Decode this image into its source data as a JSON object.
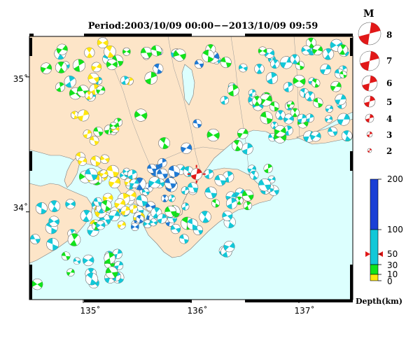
{
  "title": "Period:2003/10/09 00:00−−2013/10/09 09:59",
  "map": {
    "lon_range": [
      134.5,
      137.5
    ],
    "lat_range": [
      33.35,
      35.3
    ],
    "x_ticks": [
      {
        "lon": 135,
        "label": "135˚"
      },
      {
        "lon": 136,
        "label": "136˚"
      },
      {
        "lon": 137,
        "label": "137˚"
      }
    ],
    "y_ticks": [
      {
        "lat": 35,
        "label": "35˚"
      },
      {
        "lat": 34,
        "label": "34˚"
      }
    ],
    "colors": {
      "sea": "#dcfffe",
      "land": "#fde5c8",
      "shallow_0_10": "#ffe70f",
      "depth_10_30": "#12e31c",
      "depth_30_100": "#12c8d8",
      "deep_100_200": "#1e7ad5",
      "mainshock_red": "#e11818"
    },
    "mainshock": {
      "lon": 136.05,
      "lat": 34.28,
      "magnitude": 4.0,
      "depth_km": 50
    }
  },
  "magnitude_legend": {
    "title": "M",
    "items": [
      "8",
      "7",
      "6",
      "5",
      "4",
      "3",
      "2"
    ]
  },
  "depth_colorbar": {
    "title": "Depth(km)",
    "labels": [
      "200",
      "100",
      "50",
      "30",
      "10",
      "0"
    ],
    "marker_depth": "50"
  }
}
